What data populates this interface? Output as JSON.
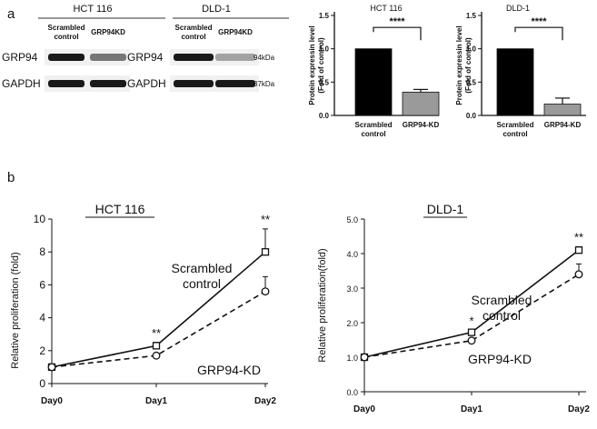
{
  "panel_labels": {
    "a": "a",
    "b": "b"
  },
  "blots": [
    {
      "title": "HCT 116",
      "lanes": [
        "Scrambled control",
        "GRP94KD"
      ],
      "rows": [
        {
          "label": "GRP94",
          "intensity": [
            1.0,
            0.55
          ],
          "mw": ""
        },
        {
          "label": "GAPDH",
          "intensity": [
            1.0,
            1.0
          ],
          "mw": ""
        }
      ]
    },
    {
      "title": "DLD-1",
      "lanes": [
        "Scrambled control",
        "GRP94KD"
      ],
      "rows": [
        {
          "label": "GRP94",
          "intensity": [
            1.0,
            0.35
          ],
          "mw": "94kDa"
        },
        {
          "label": "GAPDH",
          "intensity": [
            1.0,
            1.0
          ],
          "mw": "37kDa"
        }
      ]
    }
  ],
  "chart_data": [
    {
      "type": "bar",
      "title": "HCT 116",
      "ylabel": "Protein expressin level (Fold of control)",
      "categories": [
        "Scrambled control",
        "GRP94-KD"
      ],
      "values": [
        1.0,
        0.35
      ],
      "errors": [
        0,
        0.04
      ],
      "colors": [
        "#000000",
        "#9a9a9a"
      ],
      "ylim": [
        0,
        1.5
      ],
      "yticks": [
        0.0,
        0.5,
        1.0,
        1.5
      ],
      "yticklabels": [
        "0.0",
        "0.5",
        "1.0",
        "1.5"
      ],
      "significance": "****"
    },
    {
      "type": "bar",
      "title": "DLD-1",
      "ylabel": "Protein expressin level (Fold of control)",
      "categories": [
        "Scrambled control",
        "GRP94-KD"
      ],
      "values": [
        1.0,
        0.17
      ],
      "errors": [
        0,
        0.09
      ],
      "colors": [
        "#000000",
        "#9a9a9a"
      ],
      "ylim": [
        0,
        1.5
      ],
      "yticks": [
        0.0,
        0.5,
        1.0,
        1.5
      ],
      "yticklabels": [
        "0.0",
        "0.5",
        "1.0",
        "1.5"
      ],
      "significance": "****"
    },
    {
      "type": "line",
      "title": "HCT 116",
      "ylabel": "Relative proliferation (fold)",
      "categories": [
        "Day0",
        "Day1",
        "Day2"
      ],
      "ylim": [
        0,
        10
      ],
      "yticks": [
        0,
        2,
        4,
        6,
        8,
        10
      ],
      "yticklabels": [
        "0",
        "2",
        "4",
        "6",
        "8",
        "10"
      ],
      "series": [
        {
          "name": "Scrambled control",
          "values": [
            1.0,
            2.3,
            8.0
          ],
          "errors": [
            0,
            0.2,
            1.4
          ],
          "marker": "square",
          "dash": "solid"
        },
        {
          "name": "GRP94-KD",
          "values": [
            1.0,
            1.7,
            5.6
          ],
          "errors": [
            0,
            0.1,
            0.9
          ],
          "marker": "circle",
          "dash": "dashed"
        }
      ],
      "annotations": [
        "",
        "**",
        "**"
      ]
    },
    {
      "type": "line",
      "title": "DLD-1",
      "ylabel": "Relative proliferation(fold)",
      "categories": [
        "Day0",
        "Day1",
        "Day2"
      ],
      "ylim": [
        0,
        5
      ],
      "yticks": [
        0,
        1,
        2,
        3,
        4,
        5
      ],
      "yticklabels": [
        "0.0",
        "1.0",
        "2.0",
        "3.0",
        "4.0",
        "5.0"
      ],
      "series": [
        {
          "name": "Scrambled control",
          "values": [
            1.0,
            1.72,
            4.1
          ],
          "errors": [
            0,
            0.05,
            0.1
          ],
          "marker": "square",
          "dash": "solid"
        },
        {
          "name": "GRP94-KD",
          "values": [
            1.0,
            1.48,
            3.4
          ],
          "errors": [
            0,
            0.04,
            0.3
          ],
          "marker": "circle",
          "dash": "dashed"
        }
      ],
      "annotations": [
        "",
        "*",
        "**"
      ]
    }
  ]
}
